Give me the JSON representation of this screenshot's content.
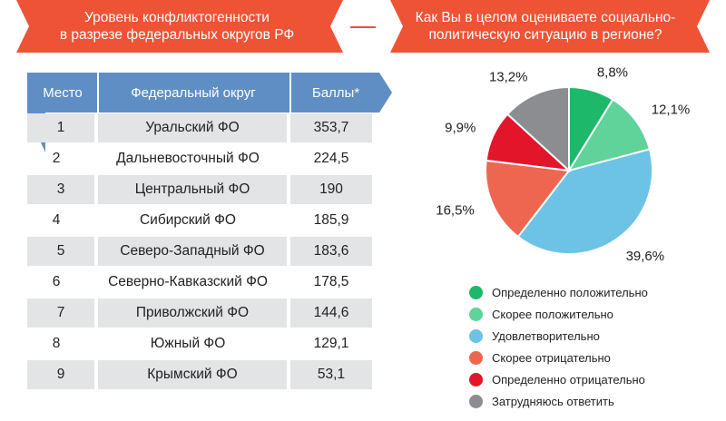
{
  "colors": {
    "accent": "#ee5335",
    "header_blue": "#5f8ec4",
    "row_shade": "#e3e4e6"
  },
  "banner_left": {
    "line1": "Уровень конфликтогенности",
    "line2": "в разрезе федеральных округов РФ"
  },
  "banner_right": {
    "line1": "Как Вы в целом оцениваете социально-",
    "line2": "политическую ситуацию в регионе?"
  },
  "table": {
    "headers": {
      "rank": "Место",
      "name": "Федеральный округ",
      "score": "Баллы*"
    },
    "rows": [
      {
        "rank": "1",
        "name": "Уральский ФО",
        "score": "353,7"
      },
      {
        "rank": "2",
        "name": "Дальневосточный ФО",
        "score": "224,5"
      },
      {
        "rank": "3",
        "name": "Центральный ФО",
        "score": "190"
      },
      {
        "rank": "4",
        "name": "Сибирский ФО",
        "score": "185,9"
      },
      {
        "rank": "5",
        "name": "Северо-Западный ФО",
        "score": "183,6"
      },
      {
        "rank": "6",
        "name": "Северно-Кавказский ФО",
        "score": "178,5"
      },
      {
        "rank": "7",
        "name": "Приволжский ФО",
        "score": "144,6"
      },
      {
        "rank": "8",
        "name": "Южный ФО",
        "score": "129,1"
      },
      {
        "rank": "9",
        "name": "Крымский ФО",
        "score": "53,1"
      }
    ]
  },
  "chart_data": [
    {
      "type": "table",
      "columns": [
        "Место",
        "Федеральный округ",
        "Баллы*"
      ],
      "rows": [
        [
          "1",
          "Уральский ФО",
          "353,7"
        ],
        [
          "2",
          "Дальневосточный ФО",
          "224,5"
        ],
        [
          "3",
          "Центральный ФО",
          "190"
        ],
        [
          "4",
          "Сибирский ФО",
          "185,9"
        ],
        [
          "5",
          "Северо-Западный ФО",
          "183,6"
        ],
        [
          "6",
          "Северно-Кавказский ФО",
          "178,5"
        ],
        [
          "7",
          "Приволжский ФО",
          "144,6"
        ],
        [
          "8",
          "Южный ФО",
          "129,1"
        ],
        [
          "9",
          "Крымский ФО",
          "53,1"
        ]
      ]
    },
    {
      "type": "pie",
      "title": "Как Вы в целом оцениваете социально-политическую ситуацию в регионе?",
      "slices": [
        {
          "label": "Определенно положительно",
          "value": 8.8,
          "display": "8,8%",
          "color": "#1db86a"
        },
        {
          "label": "Скорее положительно",
          "value": 12.1,
          "display": "12,1%",
          "color": "#5fd39a"
        },
        {
          "label": "Удовлетворительно",
          "value": 39.6,
          "display": "39,6%",
          "color": "#6cc3e6"
        },
        {
          "label": "Скорее отрицательно",
          "value": 16.5,
          "display": "16,5%",
          "color": "#ef6650"
        },
        {
          "label": "Определенно отрицательно",
          "value": 9.9,
          "display": "9,9%",
          "color": "#e3152a"
        },
        {
          "label": "Затрудняюсь ответить",
          "value": 13.2,
          "display": "13,2%",
          "color": "#8b8d91"
        }
      ]
    }
  ]
}
